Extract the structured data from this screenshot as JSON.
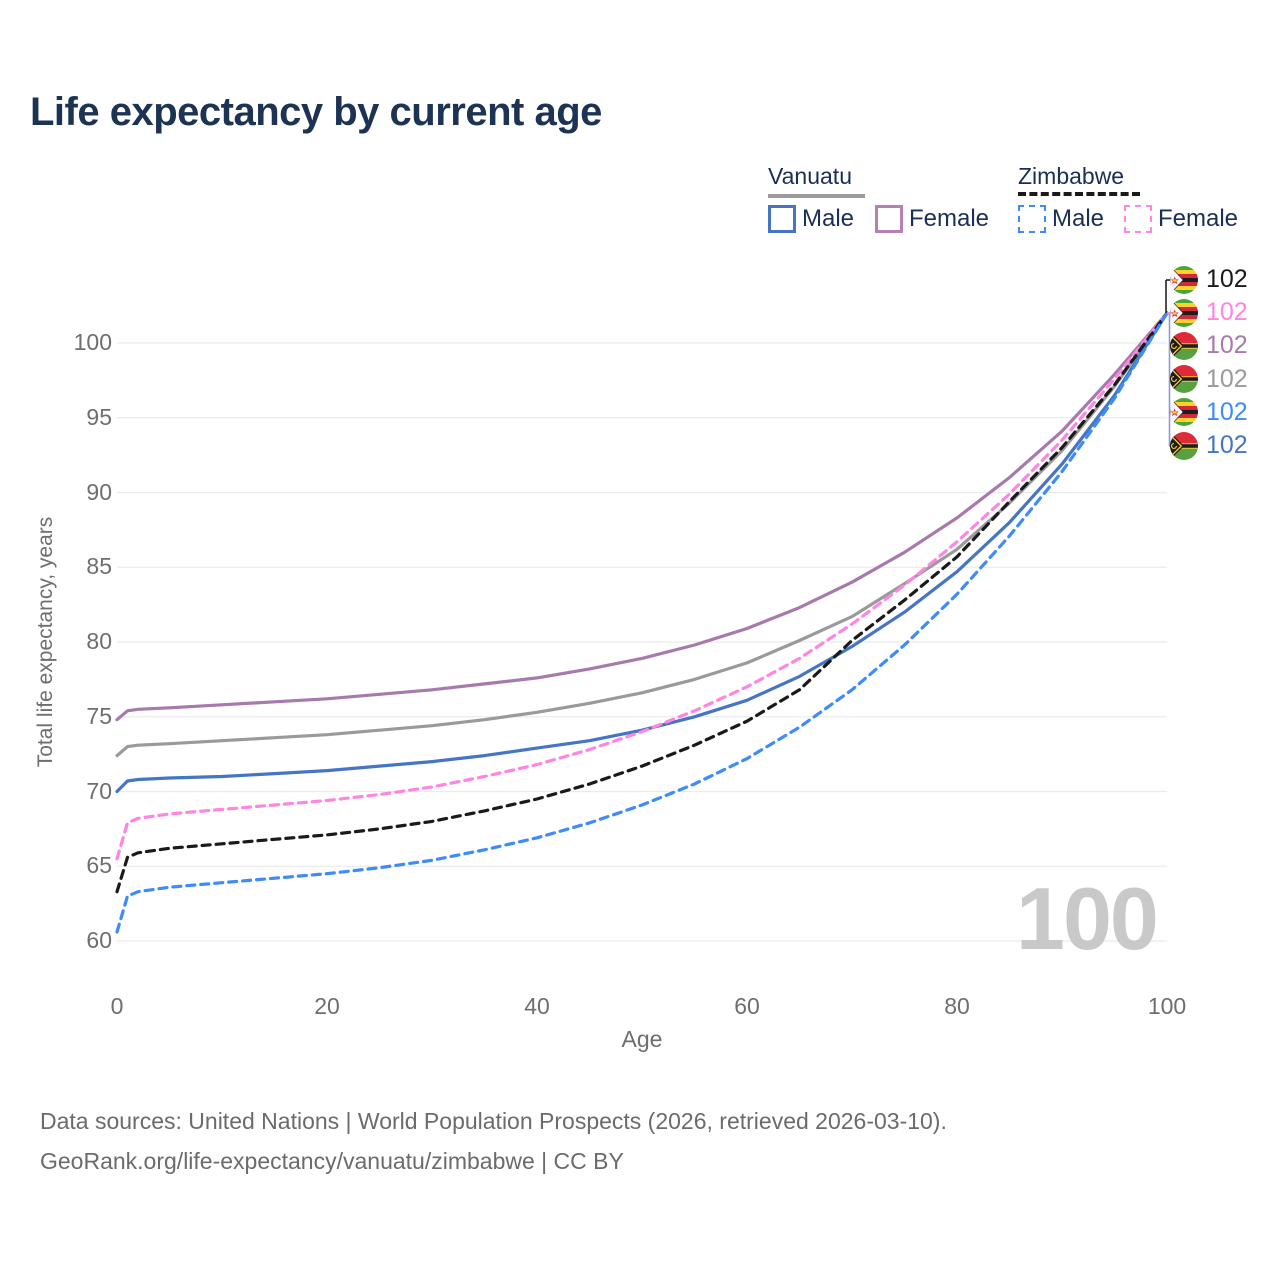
{
  "title": "Life expectancy by current age",
  "watermark": "100",
  "legend": {
    "groups": [
      {
        "name": "Vanuatu",
        "line_style": "solid",
        "header_color": "#9a9a9a",
        "items": [
          {
            "label": "Male",
            "color": "#4575c4",
            "dashed": false
          },
          {
            "label": "Female",
            "color": "#b77fb4",
            "dashed": false
          }
        ]
      },
      {
        "name": "Zimbabwe",
        "line_style": "dashed",
        "header_color": "#1a1a1a",
        "items": [
          {
            "label": "Male",
            "color": "#3d8bfd",
            "dashed": true
          },
          {
            "label": "Female",
            "color": "#ff85e2",
            "dashed": true
          }
        ]
      }
    ]
  },
  "chart_data": {
    "type": "line",
    "title": "Life expectancy by current age",
    "xlabel": "Age",
    "ylabel": "Total life expectancy, years",
    "xlim": [
      0,
      100
    ],
    "ylim": [
      59,
      103
    ],
    "xticks": [
      0,
      20,
      40,
      60,
      80,
      100
    ],
    "yticks": [
      60,
      65,
      70,
      75,
      80,
      85,
      90,
      95,
      100
    ],
    "grid": "horizontal",
    "legend_position": "top-right",
    "x": [
      0,
      1,
      2,
      5,
      10,
      15,
      20,
      25,
      30,
      35,
      40,
      45,
      50,
      55,
      60,
      65,
      70,
      75,
      80,
      85,
      90,
      95,
      100
    ],
    "series": [
      {
        "name": "Vanuatu Female",
        "country": "Vanuatu",
        "sex": "Female",
        "color": "#a879ad",
        "dashed": false,
        "values": [
          74.8,
          75.4,
          75.5,
          75.6,
          75.8,
          76.0,
          76.2,
          76.5,
          76.8,
          77.2,
          77.6,
          78.2,
          78.9,
          79.8,
          80.9,
          82.3,
          84.0,
          86.0,
          88.3,
          91.0,
          94.1,
          97.9,
          102
        ]
      },
      {
        "name": "Vanuatu Total",
        "country": "Vanuatu",
        "sex": "Total",
        "color": "#9a9a9a",
        "dashed": false,
        "values": [
          72.4,
          73.0,
          73.1,
          73.2,
          73.4,
          73.6,
          73.8,
          74.1,
          74.4,
          74.8,
          75.3,
          75.9,
          76.6,
          77.5,
          78.6,
          80.1,
          81.7,
          83.9,
          86.2,
          89.3,
          92.8,
          97.1,
          102
        ]
      },
      {
        "name": "Vanuatu Male",
        "country": "Vanuatu",
        "sex": "Male",
        "color": "#4575c4",
        "dashed": false,
        "values": [
          70.0,
          70.7,
          70.8,
          70.9,
          71.0,
          71.2,
          71.4,
          71.7,
          72.0,
          72.4,
          72.9,
          73.4,
          74.1,
          75.0,
          76.1,
          77.7,
          79.7,
          82.0,
          84.7,
          88.0,
          91.9,
          96.5,
          102
        ]
      },
      {
        "name": "Zimbabwe Female",
        "country": "Zimbabwe",
        "sex": "Female",
        "color": "#ff85e2",
        "dashed": true,
        "values": [
          65.5,
          67.9,
          68.2,
          68.5,
          68.8,
          69.1,
          69.4,
          69.8,
          70.3,
          71.0,
          71.8,
          72.8,
          74.0,
          75.4,
          77.0,
          78.9,
          81.2,
          83.8,
          86.7,
          89.9,
          93.5,
          97.6,
          102
        ]
      },
      {
        "name": "Zimbabwe Total",
        "country": "Zimbabwe",
        "sex": "Total",
        "color": "#1a1a1a",
        "dashed": true,
        "values": [
          63.3,
          65.6,
          65.9,
          66.2,
          66.5,
          66.8,
          67.1,
          67.5,
          68.0,
          68.7,
          69.5,
          70.5,
          71.7,
          73.1,
          74.7,
          76.8,
          80.1,
          82.8,
          85.7,
          89.4,
          93.0,
          97.2,
          102
        ]
      },
      {
        "name": "Zimbabwe Male",
        "country": "Zimbabwe",
        "sex": "Male",
        "color": "#3d8bfd",
        "dashed": true,
        "values": [
          60.6,
          63.0,
          63.3,
          63.6,
          63.9,
          64.2,
          64.5,
          64.9,
          65.4,
          66.1,
          66.9,
          67.9,
          69.1,
          70.5,
          72.2,
          74.3,
          76.8,
          79.8,
          83.2,
          87.1,
          91.4,
          96.3,
          102
        ]
      }
    ]
  },
  "end_labels": [
    {
      "flag": "zimbabwe",
      "value": "102",
      "color": "#1a1a1a"
    },
    {
      "flag": "zimbabwe",
      "value": "102",
      "color": "#ff85e2"
    },
    {
      "flag": "vanuatu",
      "value": "102",
      "color": "#a879ad"
    },
    {
      "flag": "vanuatu",
      "value": "102",
      "color": "#9a9a9a"
    },
    {
      "flag": "zimbabwe",
      "value": "102",
      "color": "#3d8bfd"
    },
    {
      "flag": "vanuatu",
      "value": "102",
      "color": "#4575c4"
    }
  ],
  "footer": {
    "line1": "Data sources: United Nations | World Population Prospects (2026, retrieved 2026-03-10).",
    "line2": "GeoRank.org/life-expectancy/vanuatu/zimbabwe | CC BY"
  }
}
